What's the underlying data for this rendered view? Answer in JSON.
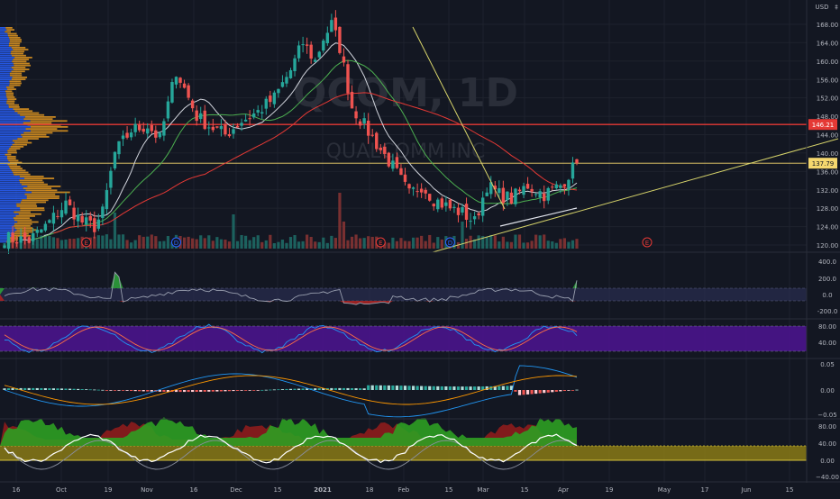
{
  "colors": {
    "bg": "#131722",
    "up": "#26a69a",
    "down": "#ef5350",
    "grid": "#1e222d",
    "axis_text": "#b2b5be",
    "ma_white": "#d1d4dc",
    "ma_green": "#4caf50",
    "ma_red": "#e53935",
    "trend_yellow": "#d6d36a",
    "resistance": "#e53935",
    "vp_blue": "#2962ff",
    "vp_orange": "#f0a020",
    "rsi_band": "#4a148c"
  },
  "header": {
    "currency": "USD",
    "watermark_symbol": "QCOM, 1D",
    "watermark_name": "QUALCOMM INC"
  },
  "chart_data": [
    {
      "type": "candlestick",
      "panel": "price",
      "symbol": "QCOM",
      "interval": "1D",
      "y_ticks": [
        "168.00",
        "164.00",
        "160.00",
        "156.00",
        "152.00",
        "148.00",
        "144.00",
        "140.00",
        "136.00",
        "132.00",
        "128.00",
        "124.00",
        "120.00"
      ],
      "ylim": [
        118.5,
        170.5
      ],
      "price_labels": [
        {
          "text": "146.21",
          "value": 146.21,
          "color": "#e53935"
        },
        {
          "text": "137.79",
          "value": 137.79,
          "color": "#f5d76e"
        }
      ],
      "horizontal_lines": [
        {
          "value": 146.21,
          "color": "#e53935"
        },
        {
          "value": 137.79,
          "color": "#f5d76e"
        }
      ],
      "x_ticks": [
        "16",
        "Oct",
        "19",
        "Nov",
        "16",
        "Dec",
        "15",
        "2021",
        "18",
        "Feb",
        "15",
        "Mar",
        "15",
        "Apr",
        "19",
        "May",
        "17",
        "Jun",
        "15"
      ],
      "earnings_markers": [
        {
          "label": "E",
          "date_index": 20
        },
        {
          "label": "D",
          "date_index": 42
        },
        {
          "label": "E",
          "date_index": 92
        },
        {
          "label": "D",
          "date_index": 109
        },
        {
          "label": "E",
          "date_index": 143
        }
      ]
    },
    {
      "type": "line",
      "panel": "cci",
      "y_ticks": [
        "400.0",
        "200.0",
        "0.0",
        "-200.0"
      ],
      "ylim": [
        -300,
        450
      ]
    },
    {
      "type": "line",
      "panel": "stochastic_rsi",
      "y_ticks": [
        "80.00",
        "40.00"
      ],
      "ylim": [
        0,
        100
      ]
    },
    {
      "type": "bar",
      "panel": "macd",
      "y_ticks": [
        "0.05",
        "0.00",
        "−0.05"
      ],
      "ylim": [
        -0.08,
        0.08
      ]
    },
    {
      "type": "area",
      "panel": "oscillator",
      "y_ticks": [
        "80.00",
        "40.00",
        "0.00",
        "−40.00"
      ],
      "ylim": [
        -55,
        95
      ]
    }
  ]
}
